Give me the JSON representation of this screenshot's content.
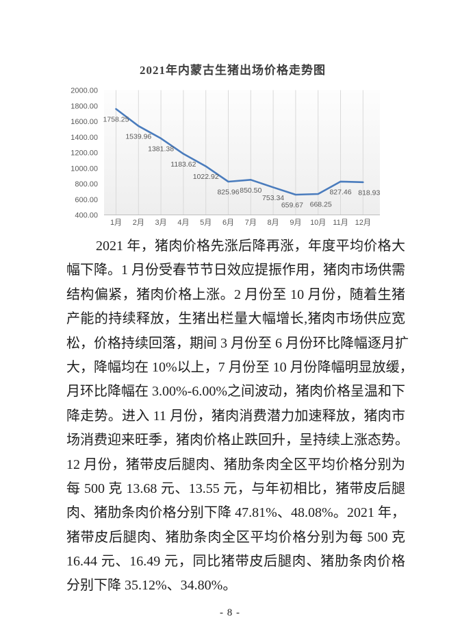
{
  "page": {
    "number_label": "- 8 -"
  },
  "chart_data": {
    "type": "line",
    "title": "2021年内蒙古生猪出场价格走势图",
    "categories": [
      "1月",
      "2月",
      "3月",
      "4月",
      "5月",
      "6月",
      "7月",
      "8月",
      "9月",
      "10月",
      "11月",
      "12月"
    ],
    "values": [
      1758.25,
      1539.96,
      1381.38,
      1183.62,
      1022.92,
      825.96,
      850.5,
      753.34,
      659.67,
      668.25,
      827.46,
      818.93
    ],
    "value_labels": [
      "1758.25",
      "1539.96",
      "1381.38",
      "1183.62",
      "1022.92",
      "825.96",
      "850.50",
      "753.34",
      "659.67",
      "668.25",
      "827.46",
      "818.93"
    ],
    "xlabel": "",
    "ylabel": "",
    "ylim": [
      400,
      2000
    ],
    "ytick_step": 200,
    "ytick_labels": [
      "2000.00",
      "1800.00",
      "1600.00",
      "1400.00",
      "1200.00",
      "1000.00",
      "800.00",
      "600.00",
      "400.00"
    ],
    "grid": "vertical",
    "legend": "none",
    "line_color": "#4a7cbd",
    "data_label_color": "#595959",
    "axis_label_color": "#595959",
    "gridline_color": "#d9d9d9",
    "axis_line_color": "#bdbdbd"
  },
  "body": {
    "lines": [
      "2021 年，猪肉价格先涨后降再涨，年度平均价格大",
      "幅下降。1 月份受春节节日效应提振作用，猪肉市场供需",
      "结构偏紧，猪肉价格上涨。2 月份至 10 月份，随着生猪",
      "产能的持续释放，生猪出栏量大幅增长,猪肉市场供应宽",
      "松，价格持续回落，期间 3 月份至 6 月份环比降幅逐月扩",
      "大，降幅均在 10%以上，7 月份至 10 月份降幅明显放缓，",
      "月环比降幅在 3.00%-6.00%之间波动，猪肉价格呈温和下",
      "降走势。进入 11 月份，猪肉消费潜力加速释放，猪肉市",
      "场消费迎来旺季，猪肉价格止跌回升，呈持续上涨态势。",
      "12 月份，猪带皮后腿肉、猪肋条肉全区平均价格分别为",
      "每 500 克 13.68 元、13.55 元，与年初相比，猪带皮后腿",
      "肉、猪肋条肉价格分别下降 47.81%、48.08%。2021 年，",
      "猪带皮后腿肉、猪肋条肉全区平均价格分别为每 500 克",
      "16.44 元、16.49 元，同比猪带皮后腿肉、猪肋条肉价格",
      "分别下降 35.12%、34.80%。"
    ]
  }
}
